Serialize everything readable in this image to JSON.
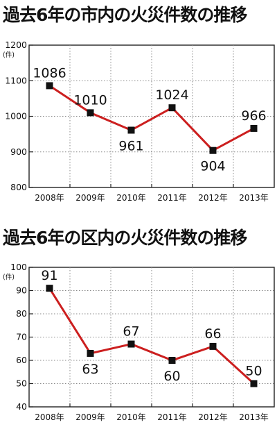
{
  "chart_data": [
    {
      "type": "line",
      "title": "過去6年の市内の火災件数の推移",
      "unit_label": "(件)",
      "categories": [
        "2008年",
        "2009年",
        "2010年",
        "2011年",
        "2012年",
        "2013年"
      ],
      "values": [
        1086,
        1010,
        961,
        1024,
        904,
        966
      ],
      "data_labels": [
        "1086",
        "1010",
        "961",
        "1024",
        "904",
        "966"
      ],
      "ylim": [
        800,
        1200
      ],
      "yticks": [
        800,
        900,
        1000,
        1100,
        1200
      ],
      "ytick_labels": [
        "800",
        "900",
        "1000",
        "1100",
        "1200"
      ],
      "grid": "dotted",
      "line_color": "#cc1f1f",
      "marker_color": "#111111",
      "marker": "square"
    },
    {
      "type": "line",
      "title": "過去6年の区内の火災件数の推移",
      "unit_label": "(件)",
      "categories": [
        "2008年",
        "2009年",
        "2010年",
        "2011年",
        "2012年",
        "2013年"
      ],
      "values": [
        91,
        63,
        67,
        60,
        66,
        50
      ],
      "data_labels": [
        "91",
        "63",
        "67",
        "60",
        "66",
        "50"
      ],
      "ylim": [
        40,
        100
      ],
      "yticks": [
        40,
        50,
        60,
        70,
        80,
        90,
        100
      ],
      "ytick_labels": [
        "40",
        "50",
        "60",
        "70",
        "80",
        "90",
        "100"
      ],
      "grid": "dotted",
      "line_color": "#cc1f1f",
      "marker_color": "#111111",
      "marker": "square"
    }
  ]
}
